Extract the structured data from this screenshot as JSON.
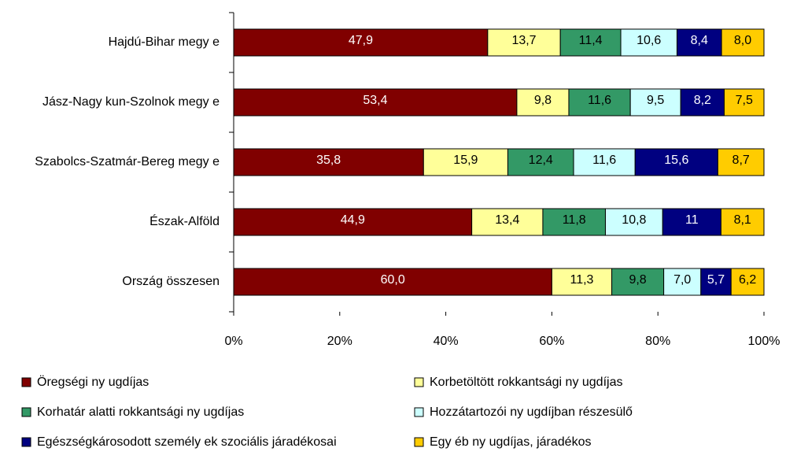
{
  "chart_data": {
    "type": "stacked_barh",
    "categories": [
      "Hajdú-Bihar megy e",
      "Jász-Nagy kun-Szolnok megy e",
      "Szabolcs-Szatmár-Bereg megy e",
      "Észak-Alföld",
      "Ország összesen"
    ],
    "series": [
      {
        "name": "Öregségi ny ugdíjas",
        "color": "#800000",
        "label_color": "#ffffff",
        "values": [
          47.9,
          53.4,
          35.8,
          44.9,
          60.0
        ],
        "value_labels": [
          "47,9",
          "53,4",
          "35,8",
          "44,9",
          "60,0"
        ]
      },
      {
        "name": "Korbetöltött rokkantsági ny ugdíjas",
        "color": "#ffff99",
        "label_color": "#000000",
        "values": [
          13.7,
          9.8,
          15.9,
          13.4,
          11.3
        ],
        "value_labels": [
          "13,7",
          "9,8",
          "15,9",
          "13,4",
          "11,3"
        ]
      },
      {
        "name": "Korhatár alatti rokkantsági ny ugdíjas",
        "color": "#339966",
        "label_color": "#000000",
        "values": [
          11.4,
          11.6,
          12.4,
          11.8,
          9.8
        ],
        "value_labels": [
          "11,4",
          "11,6",
          "12,4",
          "11,8",
          "9,8"
        ]
      },
      {
        "name": "Hozzátartozói ny ugdíjban részesülő",
        "color": "#ccffff",
        "label_color": "#000000",
        "values": [
          10.6,
          9.5,
          11.6,
          10.8,
          7.0
        ],
        "value_labels": [
          "10,6",
          "9,5",
          "11,6",
          "10,8",
          "7,0"
        ]
      },
      {
        "name": "Egészségkárosodott személy ek szociális járadékosai",
        "color": "#000080",
        "label_color": "#ffffff",
        "values": [
          8.4,
          8.2,
          15.6,
          11,
          5.7
        ],
        "value_labels": [
          "8,4",
          "8,2",
          "15,6",
          "11",
          "5,7"
        ]
      },
      {
        "name": "Egy éb ny ugdíjas, járadékos",
        "color": "#ffcc00",
        "label_color": "#000000",
        "values": [
          8.0,
          7.5,
          8.7,
          8.1,
          6.2
        ],
        "value_labels": [
          "8,0",
          "7,5",
          "8,7",
          "8,1",
          "6,2"
        ]
      }
    ],
    "xlim": [
      0,
      100
    ],
    "xticks": [
      {
        "value": 0,
        "label": "0%"
      },
      {
        "value": 20,
        "label": "20%"
      },
      {
        "value": 40,
        "label": "40%"
      },
      {
        "value": 60,
        "label": "60%"
      },
      {
        "value": 80,
        "label": "80%"
      },
      {
        "value": 100,
        "label": "100%"
      }
    ],
    "grid": false,
    "legend": "bottom"
  }
}
